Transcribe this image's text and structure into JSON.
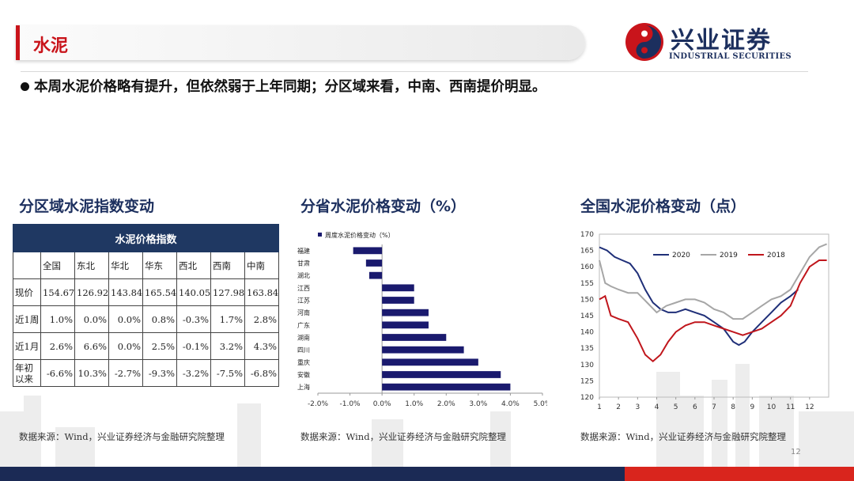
{
  "header": {
    "title": "水泥"
  },
  "logo": {
    "name_cn": "兴业证券",
    "name_en": "INDUSTRIAL SECURITIES"
  },
  "bullet": "本周水泥价格略有提升，但依然弱于上年同期；分区域来看，中南、西南提价明显。",
  "panel_titles": {
    "table": "分区域水泥指数变动",
    "bar": "分省水泥价格变动（%）",
    "line": "全国水泥价格变动（点）"
  },
  "table": {
    "banner": "水泥价格指数",
    "columns": [
      "全国",
      "东北",
      "华北",
      "华东",
      "西北",
      "西南",
      "中南"
    ],
    "rows": [
      {
        "label": "现价",
        "values": [
          "154.67",
          "126.92",
          "143.84",
          "165.54",
          "140.05",
          "127.98",
          "163.84"
        ]
      },
      {
        "label": "近1周",
        "values": [
          "1.0%",
          "0.0%",
          "0.0%",
          "0.8%",
          "-0.3%",
          "1.7%",
          "2.8%"
        ]
      },
      {
        "label": "近1月",
        "values": [
          "2.6%",
          "6.6%",
          "0.0%",
          "2.5%",
          "-0.1%",
          "3.2%",
          "4.3%"
        ]
      },
      {
        "label": "年初以来",
        "values": [
          "-6.6%",
          "10.3%",
          "-2.7%",
          "-9.3%",
          "-3.2%",
          "-7.5%",
          "-6.8%"
        ]
      }
    ]
  },
  "source": "数据来源：Wind，兴业证券经济与金融研究院整理",
  "page_number": "12",
  "colors": {
    "brand_red": "#c9141b",
    "navy": "#1b2a55",
    "bar": "#1a1a6e",
    "series_2020": "#1f2f78",
    "series_2019": "#a6a6a6",
    "series_2018": "#c0161c"
  },
  "chart_data": [
    {
      "type": "bar",
      "orientation": "horizontal",
      "series": [
        {
          "name": "周度水泥价格变动（%）"
        }
      ],
      "categories": [
        "福建",
        "甘肃",
        "湖北",
        "江西",
        "江苏",
        "河南",
        "广东",
        "湖南",
        "四川",
        "重庆",
        "安徽",
        "上海"
      ],
      "values": [
        -0.9,
        -0.5,
        -0.4,
        1.0,
        1.0,
        1.45,
        1.45,
        2.0,
        2.55,
        3.0,
        3.7,
        4.0
      ],
      "xlim": [
        -2.0,
        5.0
      ],
      "xticks": [
        "-2.0%",
        "-1.0%",
        "0.0%",
        "1.0%",
        "2.0%",
        "3.0%",
        "4.0%",
        "5.0%"
      ],
      "legend_position": "top-left"
    },
    {
      "type": "line",
      "x_ticks": [
        "1",
        "2",
        "3",
        "4",
        "5",
        "6",
        "7",
        "8",
        "9",
        "10",
        "11",
        "12"
      ],
      "y_ticks": [
        "120",
        "125",
        "130",
        "135",
        "140",
        "145",
        "150",
        "155",
        "160",
        "165",
        "170"
      ],
      "ylim": [
        120,
        170
      ],
      "xlim": [
        1,
        13
      ],
      "legend_position": "top",
      "series": [
        {
          "name": "2020",
          "color": "#1f2f78",
          "x": [
            1,
            1.4,
            1.8,
            2.2,
            2.6,
            3.0,
            3.4,
            3.8,
            4.2,
            4.6,
            5.0,
            5.5,
            6.0,
            6.5,
            7.0,
            7.5,
            8.0,
            8.3,
            8.6,
            9.0,
            9.5,
            10.0,
            10.5,
            11.0,
            11.4
          ],
          "values": [
            166,
            165,
            163,
            162,
            161,
            158,
            153,
            149,
            147,
            146,
            146,
            147,
            146,
            145,
            143,
            141,
            137,
            136,
            137,
            140,
            143,
            146,
            149,
            151,
            153
          ]
        },
        {
          "name": "2019",
          "color": "#a6a6a6",
          "x": [
            1,
            1.3,
            1.6,
            2.0,
            2.5,
            3.0,
            3.5,
            4.0,
            4.5,
            5.0,
            5.5,
            6.0,
            6.5,
            7.0,
            7.5,
            8.0,
            8.5,
            9.0,
            9.5,
            10.0,
            10.5,
            11.0,
            11.5,
            12.0,
            12.5,
            12.9
          ],
          "values": [
            162,
            155,
            154,
            153,
            152,
            152,
            149,
            146,
            148,
            149,
            150,
            150,
            149,
            147,
            146,
            144,
            144,
            146,
            148,
            150,
            151,
            153,
            158,
            163,
            166,
            167
          ]
        },
        {
          "name": "2018",
          "color": "#c0161c",
          "x": [
            1,
            1.3,
            1.6,
            2.0,
            2.5,
            3.0,
            3.4,
            3.8,
            4.2,
            4.6,
            5.0,
            5.5,
            6.0,
            6.5,
            7.0,
            7.5,
            8.0,
            8.5,
            9.0,
            9.5,
            10.0,
            10.5,
            11.0,
            11.5,
            12.0,
            12.5,
            12.9
          ],
          "values": [
            150,
            151,
            145,
            144,
            143,
            138,
            133,
            131,
            133,
            137,
            140,
            142,
            143,
            143,
            142,
            141,
            140,
            139,
            140,
            141,
            143,
            145,
            148,
            155,
            160,
            162,
            162
          ]
        }
      ]
    }
  ]
}
